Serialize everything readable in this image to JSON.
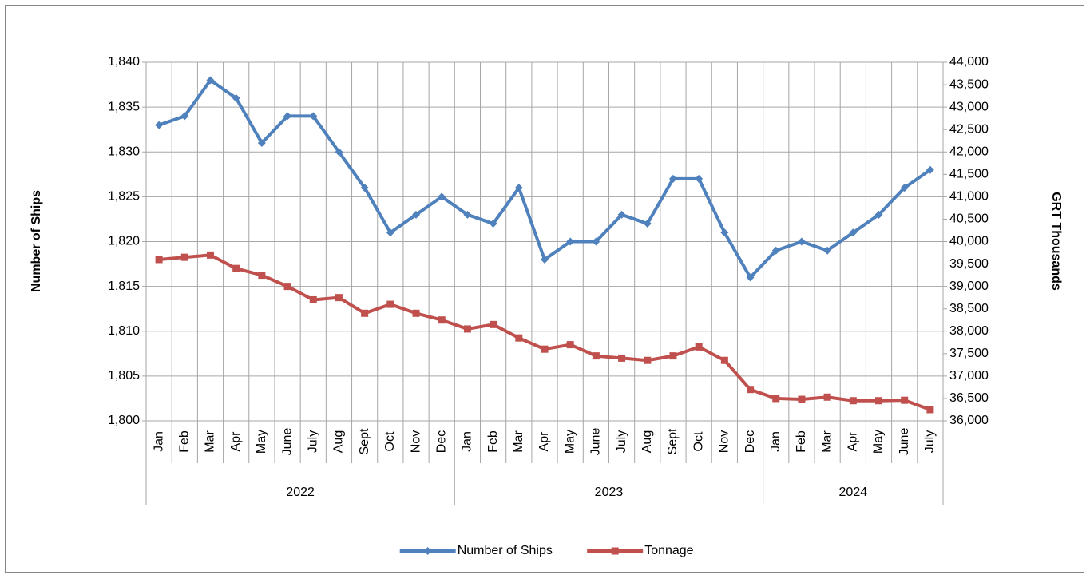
{
  "chart_data": {
    "type": "line",
    "y_title": "Number of Ships",
    "y2_title": "GRT Thousands",
    "category_groups": [
      {
        "name": "2022",
        "categories": [
          "Jan",
          "Feb",
          "Mar",
          "Apr",
          "May",
          "June",
          "July",
          "Aug",
          "Sept",
          "Oct",
          "Nov",
          "Dec"
        ]
      },
      {
        "name": "2023",
        "categories": [
          "Jan",
          "Feb",
          "Mar",
          "Apr",
          "May",
          "June",
          "July",
          "Aug",
          "Sept",
          "Oct",
          "Nov",
          "Dec"
        ]
      },
      {
        "name": "2024",
        "categories": [
          "Jan",
          "Feb",
          "Mar",
          "Apr",
          "May",
          "June",
          "July"
        ]
      }
    ],
    "series": [
      {
        "name": "Number of Ships",
        "color": "#4f81bd",
        "marker": "diamond",
        "axis": "y",
        "values": [
          1833,
          1834,
          1838,
          1836,
          1831,
          1834,
          1834,
          1830,
          1826,
          1821,
          1823,
          1825,
          1823,
          1822,
          1826,
          1818,
          1820,
          1820,
          1823,
          1822,
          1827,
          1827,
          1821,
          1816,
          1819,
          1820,
          1819,
          1821,
          1823,
          1826,
          1828
        ]
      },
      {
        "name": "Tonnage",
        "color": "#c0504d",
        "marker": "square",
        "axis": "y2",
        "values": [
          39600,
          39650,
          39700,
          39400,
          39250,
          39000,
          38700,
          38750,
          38400,
          38600,
          38400,
          38250,
          38050,
          38150,
          37850,
          37600,
          37700,
          37450,
          37400,
          37350,
          37450,
          37650,
          37350,
          36700,
          36500,
          36480,
          36530,
          36450,
          36450,
          36460,
          36250
        ]
      }
    ],
    "ylim": [
      1800,
      1840
    ],
    "yticks": [
      {
        "value": 1800,
        "label": "1,800"
      },
      {
        "value": 1805,
        "label": "1,805"
      },
      {
        "value": 1810,
        "label": "1,810"
      },
      {
        "value": 1815,
        "label": "1,815"
      },
      {
        "value": 1820,
        "label": "1,820"
      },
      {
        "value": 1825,
        "label": "1,825"
      },
      {
        "value": 1830,
        "label": "1,830"
      },
      {
        "value": 1835,
        "label": "1,835"
      },
      {
        "value": 1840,
        "label": "1,840"
      }
    ],
    "y2lim": [
      36000,
      44000
    ],
    "y2ticks": [
      {
        "value": 36000,
        "label": "36,000"
      },
      {
        "value": 36500,
        "label": "36,500"
      },
      {
        "value": 37000,
        "label": "37,000"
      },
      {
        "value": 37500,
        "label": "37,500"
      },
      {
        "value": 38000,
        "label": "38,000"
      },
      {
        "value": 38500,
        "label": "38,500"
      },
      {
        "value": 39000,
        "label": "39,000"
      },
      {
        "value": 39500,
        "label": "39,500"
      },
      {
        "value": 40000,
        "label": "40,000"
      },
      {
        "value": 40500,
        "label": "40,500"
      },
      {
        "value": 41000,
        "label": "41,000"
      },
      {
        "value": 41500,
        "label": "41,500"
      },
      {
        "value": 42000,
        "label": "42,000"
      },
      {
        "value": 42500,
        "label": "42,500"
      },
      {
        "value": 43000,
        "label": "43,000"
      },
      {
        "value": 43500,
        "label": "43,500"
      },
      {
        "value": 44000,
        "label": "44,000"
      }
    ],
    "grid": true,
    "legend": "bottom"
  }
}
